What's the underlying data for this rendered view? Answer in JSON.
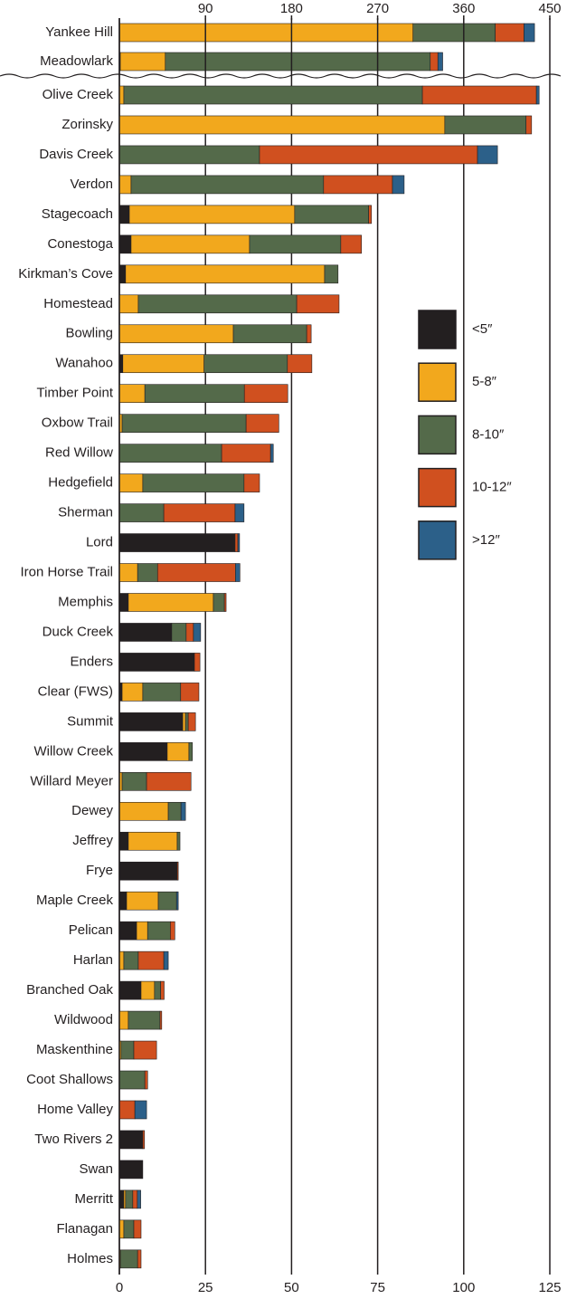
{
  "chart_data": [
    {
      "type": "bar",
      "orientation": "horizontal",
      "categories": [
        "Yankee Hill",
        "Meadowlark"
      ],
      "series": [
        {
          "color": "#231f20",
          "values": [
            0,
            1
          ]
        },
        {
          "color": "#f2a81d",
          "values": [
            307,
            47
          ]
        },
        {
          "color": "#546a4a",
          "values": [
            86,
            277
          ]
        },
        {
          "color": "#d0501f",
          "values": [
            30,
            8
          ]
        },
        {
          "color": "#2c6089",
          "values": [
            11,
            5
          ]
        }
      ],
      "xlim": [
        0,
        450
      ],
      "xticks": [
        90,
        180,
        270,
        360,
        450
      ],
      "stacked": true
    },
    {
      "type": "bar",
      "orientation": "horizontal",
      "categories": [
        "Olive Creek",
        "Zorinsky",
        "Davis Creek",
        "Verdon",
        "Stagecoach",
        "Conestoga",
        "Kirkman’s Cove",
        "Homestead",
        "Bowling",
        "Wanahoo",
        "Timber Point",
        "Oxbow Trail",
        "Red Willow",
        "Hedgefield",
        "Sherman",
        "Lord",
        "Iron Horse Trail",
        "Memphis",
        "Duck Creek",
        "Enders",
        "Clear (FWS)",
        "Summit",
        "Willow Creek",
        "Willard Meyer",
        "Dewey",
        "Jeffrey",
        "Frye",
        "Maple Creek",
        "Pelican",
        "Harlan",
        "Branched Oak",
        "Wildwood",
        "Maskenthine",
        "Coot Shallows",
        "Home Valley",
        "Two Rivers 2",
        "Swan",
        "Merritt",
        "Flanagan",
        "Holmes"
      ],
      "series": [
        {
          "name": "<5″",
          "color": "#231f20",
          "values": [
            0,
            0,
            0,
            0,
            2.9,
            3.4,
            1.8,
            0,
            0,
            1,
            0,
            0,
            0,
            0,
            0,
            33.6,
            0,
            2.6,
            15.2,
            21.8,
            0.8,
            18.4,
            13.9,
            0,
            0,
            2.6,
            16.8,
            2.1,
            5,
            0,
            6.3,
            0,
            0,
            0,
            0,
            6.8,
            6.8,
            1.3,
            0,
            0
          ]
        },
        {
          "name": "5-8″",
          "color": "#f2a81d",
          "values": [
            1.3,
            94.5,
            0,
            3.4,
            48,
            34.4,
            57.8,
            5.5,
            33.1,
            23.6,
            7.4,
            0.8,
            0,
            6.8,
            0,
            0,
            5.3,
            24.7,
            0,
            0,
            6,
            0.8,
            6.3,
            0.8,
            14.2,
            14.2,
            0,
            9.2,
            3.2,
            1.3,
            3.9,
            2.6,
            0.5,
            0,
            0,
            0,
            0,
            0.5,
            1.3,
            0.3
          ]
        },
        {
          "name": "8-10″",
          "color": "#546a4a",
          "values": [
            86.7,
            23.6,
            40.7,
            55.9,
            21.5,
            26.5,
            3.9,
            46,
            21.3,
            24.2,
            28.9,
            36,
            29.7,
            29.4,
            12.9,
            0,
            5.8,
            3.2,
            4.2,
            0,
            11,
            0.8,
            1,
            7.1,
            3.7,
            0.8,
            0,
            5.3,
            6.6,
            4.2,
            1.8,
            9.2,
            3.7,
            7.4,
            0,
            0,
            0,
            2.1,
            2.9,
            5
          ]
        },
        {
          "name": "10-12″",
          "color": "#d0501f",
          "values": [
            33.1,
            1.6,
            63.3,
            20,
            0.8,
            6,
            0,
            12.3,
            1.3,
            7.1,
            12.6,
            9.5,
            14.2,
            4.5,
            20.7,
            0.8,
            22.6,
            0.5,
            2.1,
            1.6,
            5.3,
            2.1,
            0,
            12.9,
            0,
            0,
            0.3,
            0,
            1.3,
            7.4,
            1,
            0.5,
            6.6,
            0.8,
            4.5,
            0.5,
            0,
            1.3,
            2.1,
            1
          ]
        },
        {
          "name": ">12″",
          "color": "#2c6089",
          "values": [
            0.8,
            0,
            5.8,
            3.4,
            0,
            0,
            0,
            0,
            0,
            0,
            0,
            0,
            0.8,
            0,
            2.6,
            0.5,
            1.3,
            0,
            2.1,
            0,
            0,
            0,
            0,
            0,
            1.3,
            0,
            0,
            0.5,
            0,
            1.3,
            0,
            0,
            0,
            0,
            3.4,
            0,
            0,
            1,
            0,
            0
          ]
        }
      ],
      "xlim": [
        0,
        125
      ],
      "xticks": [
        0,
        25,
        50,
        75,
        100,
        125
      ],
      "stacked": true,
      "grid": true
    }
  ]
}
